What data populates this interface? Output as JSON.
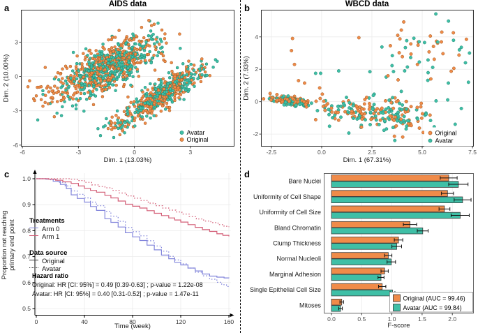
{
  "colors": {
    "original": "#F08B49",
    "original_stroke": "#A05A20",
    "avatar": "#3FBFA6",
    "avatar_stroke": "#1D8570",
    "arm0": "#8285DB",
    "arm1": "#D35D76",
    "grid": "#ebebeb",
    "axis_text": "#4d4d4d",
    "bar_stroke": "#3a3a3a"
  },
  "chart_data": [
    {
      "id": "a",
      "panel_letter": "a",
      "type": "scatter",
      "title": "AIDS data",
      "xlabel": "Dim. 1 (13.03%)",
      "ylabel": "Dim. 2 (10.00%)",
      "xlim": [
        -6.06,
        5.34
      ],
      "ylim": [
        -6.1,
        5.8
      ],
      "x_ticks": [
        -6,
        -3,
        0,
        3
      ],
      "x_tick_labels": [
        "-6",
        "-3",
        "0",
        "3"
      ],
      "y_ticks": [
        -6,
        -3,
        0,
        3
      ],
      "y_tick_labels": [
        "-6",
        "-3",
        "0",
        "3"
      ],
      "grid": true,
      "legend": {
        "position": "bottom-right",
        "items": [
          {
            "label": "Avatar",
            "series": "avatar"
          },
          {
            "label": "Original",
            "series": "original"
          }
        ]
      },
      "series": [
        {
          "name": "original",
          "label": "Original",
          "color_key": "original",
          "clusters": [
            {
              "n": 420,
              "cx": -1.35,
              "cy": 0.9,
              "sd_major": 1.65,
              "sd_minor": 0.72,
              "angle_deg": 46
            },
            {
              "n": 280,
              "cx": 1.55,
              "cy": -1.45,
              "sd_major": 1.55,
              "sd_minor": 0.42,
              "angle_deg": 49
            },
            {
              "n": 30,
              "cx": -4.1,
              "cy": -1.4,
              "sd_major": 0.9,
              "sd_minor": 0.6,
              "angle_deg": 30
            },
            {
              "n": 25,
              "cx": -0.6,
              "cy": -4.2,
              "sd_major": 0.8,
              "sd_minor": 0.5,
              "angle_deg": 40
            }
          ],
          "extra_points": [
            [
              -5.7,
              -0.9
            ],
            [
              -5.2,
              -0.95
            ],
            [
              -5.35,
              -2.1
            ],
            [
              -4.9,
              -2.6
            ]
          ]
        },
        {
          "name": "avatar",
          "label": "Avatar",
          "color_key": "avatar",
          "clusters": [
            {
              "n": 430,
              "cx": -1.3,
              "cy": 0.85,
              "sd_major": 1.6,
              "sd_minor": 0.7,
              "angle_deg": 46
            },
            {
              "n": 290,
              "cx": 1.6,
              "cy": -1.4,
              "sd_major": 1.5,
              "sd_minor": 0.4,
              "angle_deg": 49
            },
            {
              "n": 10,
              "cx": -3.4,
              "cy": -2.3,
              "sd_major": 0.7,
              "sd_minor": 0.5,
              "angle_deg": 30
            },
            {
              "n": 18,
              "cx": -0.65,
              "cy": -4.1,
              "sd_major": 0.75,
              "sd_minor": 0.45,
              "angle_deg": 40
            }
          ],
          "extra_points": []
        }
      ],
      "note": "dense overlapping point clouds approximated by gaussian clusters"
    },
    {
      "id": "b",
      "panel_letter": "b",
      "type": "scatter",
      "title": "WBCD data",
      "xlabel": "Dim. 1 (67.31%)",
      "ylabel": "Dim. 2 (7.93%)",
      "xlim": [
        -3.0,
        7.55
      ],
      "ylim": [
        -2.75,
        5.65
      ],
      "x_ticks": [
        -2.5,
        0.0,
        2.5,
        5.0,
        7.5
      ],
      "x_tick_labels": [
        "-2.5",
        "0.0",
        "2.5",
        "5.0",
        "7.5"
      ],
      "y_ticks": [
        -2,
        0,
        2,
        4
      ],
      "y_tick_labels": [
        "-2",
        "0",
        "2",
        "4"
      ],
      "grid": true,
      "legend": {
        "position": "bottom-right",
        "items": [
          {
            "label": "Original",
            "series": "original"
          },
          {
            "label": "Avatar",
            "series": "avatar"
          }
        ]
      },
      "series": [
        {
          "name": "original",
          "label": "Original",
          "color_key": "original",
          "clusters": [
            {
              "n": 95,
              "cx": -1.55,
              "cy": 0.05,
              "sd_major": 0.5,
              "sd_minor": 0.11,
              "angle_deg": -10
            },
            {
              "n": 100,
              "cx": 2.9,
              "cy": -0.75,
              "sd_major": 1.35,
              "sd_minor": 0.5,
              "angle_deg": -3
            },
            {
              "n": 26,
              "cx": 4.8,
              "cy": 2.9,
              "sd_major": 1.4,
              "sd_minor": 1.0,
              "angle_deg": 0
            },
            {
              "n": 12,
              "cx": 0.35,
              "cy": -0.35,
              "sd_major": 0.45,
              "sd_minor": 0.35,
              "angle_deg": 0
            }
          ],
          "extra_points": [
            [
              -1.45,
              3.9
            ],
            [
              -1.5,
              3.15
            ],
            [
              -1.35,
              2.3
            ],
            [
              -1.15,
              1.3
            ],
            [
              -0.85,
              1.15
            ],
            [
              1.85,
              3.95
            ],
            [
              5.05,
              -1.9
            ],
            [
              7.2,
              3.85
            ],
            [
              6.55,
              4.25
            ],
            [
              -0.1,
              0.85
            ],
            [
              3.3,
              1.6
            ]
          ]
        },
        {
          "name": "avatar",
          "label": "Avatar",
          "color_key": "avatar",
          "clusters": [
            {
              "n": 92,
              "cx": -1.5,
              "cy": 0.0,
              "sd_major": 0.48,
              "sd_minor": 0.11,
              "angle_deg": -10
            },
            {
              "n": 102,
              "cx": 3.0,
              "cy": -0.8,
              "sd_major": 1.3,
              "sd_minor": 0.5,
              "angle_deg": -3
            },
            {
              "n": 28,
              "cx": 4.9,
              "cy": 2.8,
              "sd_major": 1.35,
              "sd_minor": 1.05,
              "angle_deg": 0
            },
            {
              "n": 10,
              "cx": 0.4,
              "cy": -0.4,
              "sd_major": 0.45,
              "sd_minor": 0.35,
              "angle_deg": 0
            }
          ],
          "extra_points": [
            [
              -0.3,
              1.75
            ],
            [
              0.85,
              1.9
            ],
            [
              7.15,
              2.4
            ],
            [
              6.85,
              3.2
            ],
            [
              2.4,
              1.85
            ],
            [
              5.6,
              -1.55
            ],
            [
              6.3,
              1.15
            ],
            [
              7.3,
              1.2
            ],
            [
              -0.05,
              1.75
            ]
          ]
        }
      ],
      "note": "dense stripe cluster at left plus broad scattered cloud at right"
    },
    {
      "id": "c",
      "panel_letter": "c",
      "type": "line-step",
      "title": "",
      "xlabel": "Time (week)",
      "ylabel_line1": "Proportion not reaching",
      "ylabel_line2": "primary end point",
      "x_ticks": [
        0,
        40,
        80,
        120,
        160
      ],
      "x_tick_labels": [
        "0",
        "40",
        "80",
        "120",
        "160"
      ],
      "y_ticks": [
        1.0,
        0.9,
        0.8,
        0.7,
        0.6,
        0.5
      ],
      "y_tick_labels": [
        "1.0",
        "0.9",
        "0.8",
        "0.7",
        "0.6",
        "0.5"
      ],
      "xlim": [
        0,
        160
      ],
      "ylim": [
        0.47,
        1.02
      ],
      "grid": true,
      "legend": {
        "treatments": {
          "title": "Treatments",
          "items": [
            {
              "label": "Arm 0",
              "color_key": "arm0"
            },
            {
              "label": "Arm 1",
              "color_key": "arm1"
            }
          ]
        },
        "data_source": {
          "title": "Data source",
          "items": [
            {
              "label": "Original",
              "style": "solid"
            },
            {
              "label": "Avatar",
              "style": "dotted"
            }
          ]
        }
      },
      "hazard": {
        "title": "Hazard ratio",
        "lines": [
          "Original: HR [CI: 95%] = 0.49 [0.39-0.63] ; p-value = 1.22e-08",
          "Avatar: HR [CI: 95%] = 0.40 [0.31-0.52] ; p-value = 1.47e-11"
        ]
      },
      "series": [
        {
          "name": "Arm 0 - Original",
          "color_key": "arm0",
          "style": "solid",
          "points": [
            [
              0,
              1
            ],
            [
              8,
              0.998
            ],
            [
              14,
              0.99
            ],
            [
              20,
              0.978
            ],
            [
              25,
              0.962
            ],
            [
              29,
              0.938
            ],
            [
              34,
              0.924
            ],
            [
              40,
              0.91
            ],
            [
              45,
              0.893
            ],
            [
              50,
              0.878
            ],
            [
              57,
              0.846
            ],
            [
              62,
              0.832
            ],
            [
              68,
              0.814
            ],
            [
              74,
              0.792
            ],
            [
              80,
              0.776
            ],
            [
              86,
              0.762
            ],
            [
              92,
              0.744
            ],
            [
              98,
              0.726
            ],
            [
              104,
              0.706
            ],
            [
              110,
              0.692
            ],
            [
              115,
              0.678
            ],
            [
              120,
              0.668
            ],
            [
              126,
              0.656
            ],
            [
              132,
              0.645
            ],
            [
              138,
              0.633
            ],
            [
              144,
              0.625
            ],
            [
              150,
              0.621
            ],
            [
              156,
              0.618
            ],
            [
              160,
              0.617
            ]
          ]
        },
        {
          "name": "Arm 0 - Avatar",
          "color_key": "arm0",
          "style": "dotted",
          "points": [
            [
              0,
              1
            ],
            [
              12,
              0.996
            ],
            [
              18,
              0.986
            ],
            [
              24,
              0.972
            ],
            [
              29,
              0.953
            ],
            [
              34,
              0.94
            ],
            [
              40,
              0.926
            ],
            [
              45,
              0.91
            ],
            [
              50,
              0.896
            ],
            [
              57,
              0.874
            ],
            [
              62,
              0.856
            ],
            [
              68,
              0.836
            ],
            [
              74,
              0.812
            ],
            [
              80,
              0.796
            ],
            [
              86,
              0.78
            ],
            [
              92,
              0.761
            ],
            [
              98,
              0.741
            ],
            [
              104,
              0.721
            ],
            [
              110,
              0.701
            ],
            [
              115,
              0.687
            ],
            [
              120,
              0.672
            ],
            [
              126,
              0.656
            ],
            [
              132,
              0.64
            ],
            [
              138,
              0.626
            ],
            [
              144,
              0.613
            ],
            [
              150,
              0.601
            ],
            [
              154,
              0.592
            ],
            [
              158,
              0.585
            ],
            [
              160,
              0.581
            ]
          ]
        },
        {
          "name": "Arm 1 - Original",
          "color_key": "arm1",
          "style": "solid",
          "points": [
            [
              0,
              1
            ],
            [
              10,
              0.998
            ],
            [
              16,
              0.994
            ],
            [
              22,
              0.988
            ],
            [
              29,
              0.982
            ],
            [
              35,
              0.972
            ],
            [
              40,
              0.963
            ],
            [
              45,
              0.955
            ],
            [
              50,
              0.948
            ],
            [
              57,
              0.936
            ],
            [
              62,
              0.926
            ],
            [
              68,
              0.914
            ],
            [
              74,
              0.902
            ],
            [
              80,
              0.894
            ],
            [
              86,
              0.887
            ],
            [
              92,
              0.877
            ],
            [
              98,
              0.867
            ],
            [
              104,
              0.858
            ],
            [
              110,
              0.849
            ],
            [
              115,
              0.841
            ],
            [
              120,
              0.833
            ],
            [
              126,
              0.823
            ],
            [
              132,
              0.813
            ],
            [
              138,
              0.804
            ],
            [
              144,
              0.797
            ],
            [
              150,
              0.788
            ],
            [
              155,
              0.782
            ],
            [
              160,
              0.778
            ]
          ]
        },
        {
          "name": "Arm 1 - Avatar",
          "color_key": "arm1",
          "style": "dotted",
          "points": [
            [
              0,
              1
            ],
            [
              22,
              1
            ],
            [
              28,
              0.998
            ],
            [
              34,
              0.993
            ],
            [
              40,
              0.986
            ],
            [
              46,
              0.976
            ],
            [
              52,
              0.97
            ],
            [
              57,
              0.965
            ],
            [
              63,
              0.955
            ],
            [
              69,
              0.945
            ],
            [
              75,
              0.934
            ],
            [
              81,
              0.925
            ],
            [
              87,
              0.916
            ],
            [
              93,
              0.906
            ],
            [
              99,
              0.896
            ],
            [
              105,
              0.887
            ],
            [
              110,
              0.879
            ],
            [
              116,
              0.872
            ],
            [
              121,
              0.864
            ],
            [
              127,
              0.854
            ],
            [
              133,
              0.845
            ],
            [
              139,
              0.837
            ],
            [
              145,
              0.831
            ],
            [
              151,
              0.823
            ],
            [
              156,
              0.817
            ],
            [
              160,
              0.814
            ]
          ]
        }
      ]
    },
    {
      "id": "d",
      "panel_letter": "d",
      "type": "bar",
      "orientation": "horizontal",
      "xlabel": "F-score",
      "x_ticks": [
        0.0,
        0.5,
        1.0,
        1.5,
        2.0
      ],
      "x_tick_labels": [
        "0.0",
        "0.5",
        "1.0",
        "1.5",
        "2.0"
      ],
      "xlim": [
        -0.13,
        2.36
      ],
      "grid": true,
      "categories": [
        "Bare Nuclei",
        "Uniformity of Cell Shape",
        "Uniformity of Cell Size",
        "Bland Chromatin",
        "Clump Thickness",
        "Normal Nucleoli",
        "Marginal Adhesion",
        "Single Epithelial Cell Size",
        "Mitoses"
      ],
      "series": [
        {
          "name": "Original (AUC = 99.46)",
          "color_key": "original",
          "values": [
            1.94,
            1.92,
            1.87,
            1.3,
            1.11,
            0.94,
            0.88,
            0.84,
            0.17
          ],
          "errors": [
            0.14,
            0.1,
            0.09,
            0.11,
            0.07,
            0.06,
            0.06,
            0.06,
            0.03
          ]
        },
        {
          "name": "Avatar (AUC = 99.84)",
          "color_key": "avatar",
          "values": [
            2.1,
            2.17,
            2.13,
            1.51,
            1.08,
            0.99,
            0.82,
            1.01,
            0.15
          ],
          "errors": [
            0.16,
            0.14,
            0.15,
            0.09,
            0.08,
            0.07,
            0.05,
            0.04,
            0.03
          ]
        }
      ],
      "legend": {
        "position": "bottom-right"
      }
    }
  ]
}
